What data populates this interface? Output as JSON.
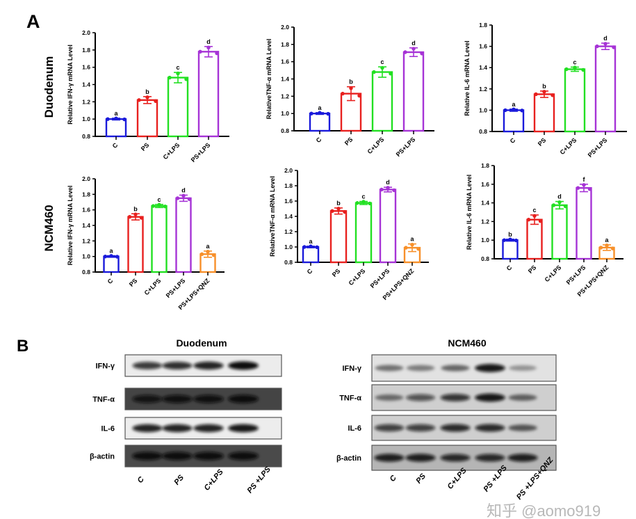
{
  "panel_labels": {
    "a": "A",
    "b": "B"
  },
  "row_labels": {
    "duodenum": "Duodenum",
    "ncm460": "NCM460"
  },
  "chart_data": [
    {
      "type": "bar",
      "group": "Duodenum",
      "ylabel": "Relative IFN-γ mRNA Level",
      "ylim": [
        0.8,
        2.0
      ],
      "yticks": [
        0.8,
        1.0,
        1.2,
        1.4,
        1.6,
        1.8,
        2.0
      ],
      "categories": [
        "C",
        "PS",
        "C+LPS",
        "PS+LPS"
      ],
      "values": [
        1.0,
        1.22,
        1.48,
        1.78
      ],
      "errors": [
        0.01,
        0.04,
        0.06,
        0.06
      ],
      "letters": [
        "a",
        "b",
        "c",
        "d"
      ],
      "colors": [
        "#1a1adb",
        "#e8201e",
        "#22e022",
        "#a633d6"
      ]
    },
    {
      "type": "bar",
      "group": "Duodenum",
      "ylabel": "RelativeTNF-α mRNA Level",
      "ylim": [
        0.8,
        2.0
      ],
      "yticks": [
        0.8,
        1.0,
        1.2,
        1.4,
        1.6,
        1.8,
        2.0
      ],
      "categories": [
        "C",
        "PS",
        "C+LPS",
        "PS+LPS"
      ],
      "values": [
        1.0,
        1.23,
        1.48,
        1.71
      ],
      "errors": [
        0.01,
        0.08,
        0.06,
        0.05
      ],
      "letters": [
        "a",
        "b",
        "c",
        "d"
      ],
      "colors": [
        "#1a1adb",
        "#e8201e",
        "#22e022",
        "#a633d6"
      ]
    },
    {
      "type": "bar",
      "group": "Duodenum",
      "ylabel": "Relative IL-6 mRNA Level",
      "ylim": [
        0.8,
        1.8
      ],
      "yticks": [
        0.8,
        1.0,
        1.2,
        1.4,
        1.6,
        1.8
      ],
      "categories": [
        "C",
        "PS",
        "C+LPS",
        "PS+LPS"
      ],
      "values": [
        1.0,
        1.15,
        1.385,
        1.6
      ],
      "errors": [
        0.01,
        0.03,
        0.02,
        0.03
      ],
      "letters": [
        "a",
        "b",
        "c",
        "d"
      ],
      "colors": [
        "#1a1adb",
        "#e8201e",
        "#22e022",
        "#a633d6"
      ]
    },
    {
      "type": "bar",
      "group": "NCM460",
      "ylabel": "Relative IFN-γ mRNA Level",
      "ylim": [
        0.8,
        2.0
      ],
      "yticks": [
        0.8,
        1.0,
        1.2,
        1.4,
        1.6,
        1.8,
        2.0
      ],
      "categories": [
        "C",
        "PS",
        "C+LPS",
        "PS+LPS",
        "PS+LPS+QNZ"
      ],
      "values": [
        1.0,
        1.51,
        1.65,
        1.75,
        1.03
      ],
      "errors": [
        0.01,
        0.04,
        0.02,
        0.04,
        0.04
      ],
      "letters": [
        "a",
        "b",
        "c",
        "d",
        "a"
      ],
      "colors": [
        "#1a1adb",
        "#e8201e",
        "#22e022",
        "#a633d6",
        "#f7902a"
      ]
    },
    {
      "type": "bar",
      "group": "NCM460",
      "ylabel": "RelativeTNF-α mRNA Level",
      "ylim": [
        0.8,
        2.0
      ],
      "yticks": [
        0.8,
        1.0,
        1.2,
        1.4,
        1.6,
        1.8,
        2.0
      ],
      "categories": [
        "C",
        "PS",
        "C+LPS",
        "PS+LPS",
        "PS+LPS+QNZ"
      ],
      "values": [
        1.0,
        1.47,
        1.575,
        1.75,
        0.99
      ],
      "errors": [
        0.01,
        0.04,
        0.02,
        0.03,
        0.05
      ],
      "letters": [
        "a",
        "b",
        "c",
        "d",
        "a"
      ],
      "colors": [
        "#1a1adb",
        "#e8201e",
        "#22e022",
        "#a633d6",
        "#f7902a"
      ]
    },
    {
      "type": "bar",
      "group": "NCM460",
      "ylabel": "Relative IL-6 mRNA Level",
      "ylim": [
        0.8,
        1.8
      ],
      "yticks": [
        0.8,
        1.0,
        1.2,
        1.4,
        1.6,
        1.8
      ],
      "categories": [
        "C",
        "PS",
        "C+LPS",
        "PS+LPS",
        "PS+LPS+QNZ"
      ],
      "values": [
        1.0,
        1.22,
        1.375,
        1.56,
        0.92
      ],
      "errors": [
        0.01,
        0.05,
        0.04,
        0.04,
        0.03
      ],
      "letters": [
        "b",
        "c",
        "d",
        "f",
        "a"
      ],
      "colors": [
        "#1a1adb",
        "#e8201e",
        "#22e022",
        "#a633d6",
        "#f7902a"
      ]
    }
  ],
  "blots": [
    {
      "title": "Duodenum",
      "rows": [
        "IFN-γ",
        "TNF-α",
        "IL-6",
        "β-actin"
      ],
      "lanes": [
        "C",
        "PS",
        "C+LPS",
        "PS +LPS"
      ]
    },
    {
      "title": "NCM460",
      "rows": [
        "IFN-γ",
        "TNF-α",
        "IL-6",
        "β-actin"
      ],
      "lanes": [
        "C",
        "PS",
        "C+LPS",
        "PS +LPS",
        "PS +LPS+QNZ"
      ]
    }
  ],
  "watermark": "知乎 @aomo919"
}
